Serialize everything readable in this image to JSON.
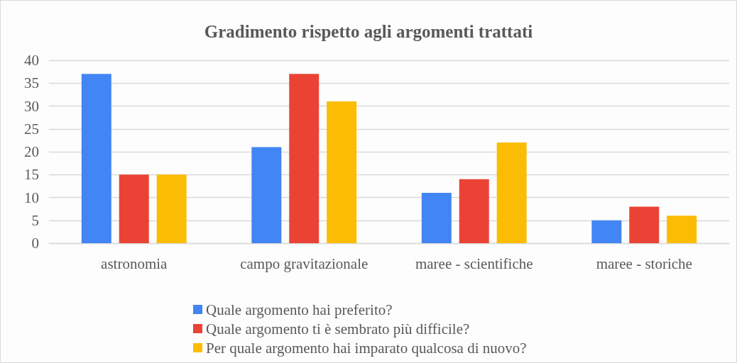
{
  "chart_data": {
    "type": "bar",
    "title": "Gradimento rispetto agli argomenti trattati",
    "categories": [
      "astronomia",
      "campo gravitazionale",
      "maree - scientifiche",
      "maree - storiche"
    ],
    "series": [
      {
        "name": "Quale argomento hai preferito?",
        "color": "#4285f4",
        "values": [
          37,
          21,
          11,
          5
        ]
      },
      {
        "name": "Quale argomento ti è sembrato più difficile?",
        "color": "#ea4335",
        "values": [
          15,
          37,
          14,
          8
        ]
      },
      {
        "name": "Per quale argomento hai imparato qualcosa di nuovo?",
        "color": "#fbbc04",
        "values": [
          15,
          31,
          22,
          6
        ]
      }
    ],
    "ylim": [
      0,
      40
    ],
    "yticks": [
      0,
      5,
      10,
      15,
      20,
      25,
      30,
      35,
      40
    ],
    "grid": "y",
    "legend": "bottom"
  }
}
